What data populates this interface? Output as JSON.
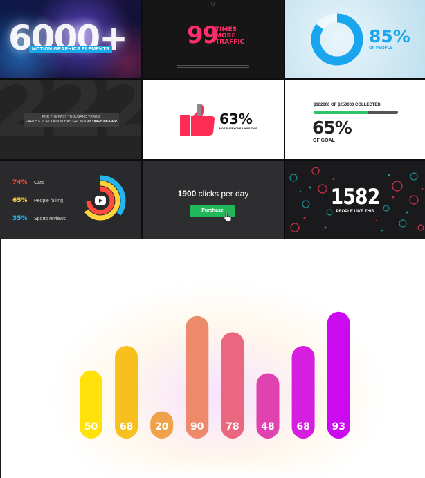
{
  "tiles": {
    "motion": {
      "big": "6000+",
      "ribbon": "MOTION GRAPHICS ELEMENTS"
    },
    "traffic": {
      "logo": "U",
      "number": "99",
      "line1": "TIMES",
      "line2": "MORE",
      "line3": "TRAFFIC"
    },
    "ring85": {
      "percent": "85%",
      "label": "OF PEOPLE",
      "value": 0.85,
      "color": "#1aa6ee"
    },
    "population": {
      "background_number": "222",
      "line1": "FOR THE PAST THOUSAND YEARS,",
      "line2": "EARTH'S POPULATION HAS GROWN",
      "emphasis": "22 TIMES BIGGER"
    },
    "thumbs": {
      "percent": "63%",
      "label": "NOT EVERYONE LIKES THIS",
      "color": "#ff2d55"
    },
    "goal": {
      "collected": "$162606 OF $250000 COLLECTED",
      "percent": "65%",
      "label": "OF GOAL",
      "value": 0.65,
      "fill_color": "#2ec26a"
    },
    "stats": {
      "rows": [
        {
          "value": "74%",
          "label": "Cats",
          "color": "#ff4a3d",
          "fraction": 0.74
        },
        {
          "value": "65%",
          "label": "People falling",
          "color": "#ffd43b",
          "fraction": 0.65
        },
        {
          "value": "35%",
          "label": "Sports reviews",
          "color": "#25b6f0",
          "fraction": 0.35
        }
      ]
    },
    "clicks": {
      "number": "1900",
      "text": " clicks per day",
      "button": "Purchase",
      "button_color": "#21b85c"
    },
    "likes": {
      "number": "1582",
      "label": "PEOPLE LIKE THIS"
    }
  },
  "chart_data": {
    "type": "bar",
    "categories": [
      "",
      "",
      "",
      "",
      "",
      "",
      "",
      ""
    ],
    "values": [
      50,
      68,
      20,
      90,
      78,
      48,
      68,
      93
    ],
    "labels": [
      "50",
      "68",
      "20",
      "90",
      "78",
      "48",
      "68",
      "93"
    ],
    "colors": [
      "#ffe20a",
      "#f7c01f",
      "#f0a24a",
      "#ee8a6c",
      "#e9677f",
      "#e043b0",
      "#d61ee0",
      "#cc0af0"
    ],
    "ylim": [
      0,
      100
    ],
    "grid": false
  }
}
